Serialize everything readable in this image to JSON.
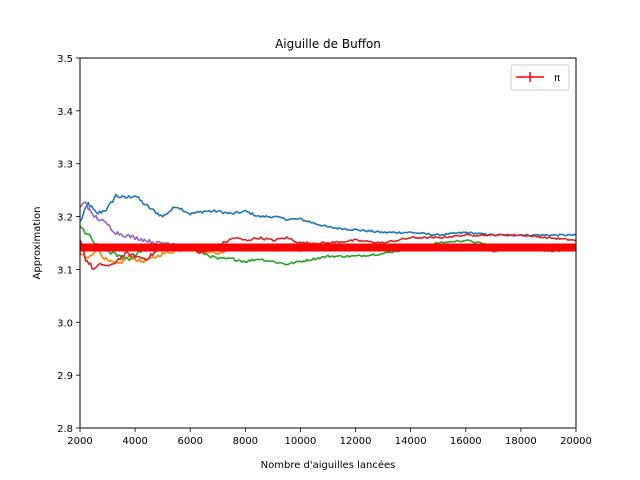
{
  "chart_data": {
    "type": "line",
    "title": "Aiguille de Buffon",
    "xlabel": "Nombre d'aiguilles lancées",
    "ylabel": "Approximation",
    "xlim": [
      2000,
      20000
    ],
    "ylim": [
      2.8,
      3.5
    ],
    "xticks": [
      "2000",
      "4000",
      "6000",
      "8000",
      "10000",
      "12000",
      "14000",
      "16000",
      "18000",
      "20000"
    ],
    "yticks": [
      "2.8",
      "2.9",
      "3.0",
      "3.1",
      "3.2",
      "3.3",
      "3.4",
      "3.5"
    ],
    "grid": false,
    "legend_position": "top-right",
    "reference": {
      "name": "π",
      "value": 3.14159,
      "color": "#ff0000"
    },
    "series": [
      {
        "color": "#1f77b4",
        "x": [
          2000,
          2300,
          2600,
          3000,
          3300,
          3600,
          4000,
          4300,
          4700,
          5000,
          5500,
          6000,
          6500,
          7000,
          7500,
          8000,
          8500,
          9000,
          9500,
          10000,
          11000,
          12000,
          13000,
          14000,
          15000,
          16000,
          17000,
          18000,
          19000,
          20000
        ],
        "y": [
          3.19,
          3.225,
          3.205,
          3.215,
          3.24,
          3.235,
          3.24,
          3.225,
          3.21,
          3.2,
          3.22,
          3.205,
          3.21,
          3.21,
          3.205,
          3.21,
          3.2,
          3.2,
          3.195,
          3.195,
          3.18,
          3.175,
          3.17,
          3.17,
          3.165,
          3.17,
          3.165,
          3.165,
          3.165,
          3.165
        ]
      },
      {
        "color": "#ff7f0e",
        "x": [
          2000,
          2300,
          2600,
          3000,
          3400,
          3800,
          4200,
          4600,
          5000,
          5500,
          6000,
          6500,
          7000,
          7500,
          8000,
          9000,
          10000,
          11000,
          12000,
          13000,
          14000,
          15000,
          16000,
          17000,
          18000,
          19000,
          20000
        ],
        "y": [
          3.13,
          3.12,
          3.14,
          3.115,
          3.11,
          3.125,
          3.115,
          3.12,
          3.13,
          3.135,
          3.14,
          3.135,
          3.13,
          3.14,
          3.14,
          3.14,
          3.135,
          3.14,
          3.14,
          3.14,
          3.14,
          3.145,
          3.145,
          3.14,
          3.14,
          3.14,
          3.14
        ]
      },
      {
        "color": "#2ca02c",
        "x": [
          2000,
          2300,
          2600,
          3000,
          3400,
          3800,
          4200,
          4600,
          5000,
          5500,
          6000,
          6500,
          7000,
          7500,
          8000,
          8500,
          9000,
          9500,
          10000,
          11000,
          12000,
          13000,
          14000,
          15000,
          16000,
          17000,
          18000,
          19000,
          20000
        ],
        "y": [
          3.18,
          3.165,
          3.145,
          3.135,
          3.125,
          3.12,
          3.135,
          3.14,
          3.145,
          3.14,
          3.14,
          3.13,
          3.12,
          3.12,
          3.115,
          3.12,
          3.115,
          3.11,
          3.115,
          3.125,
          3.125,
          3.13,
          3.14,
          3.15,
          3.155,
          3.145,
          3.14,
          3.135,
          3.135
        ]
      },
      {
        "color": "#d62728",
        "x": [
          2000,
          2200,
          2500,
          2800,
          3100,
          3400,
          3700,
          4000,
          4400,
          4800,
          5200,
          5600,
          6000,
          6400,
          6800,
          7200,
          7600,
          8000,
          8500,
          9000,
          9500,
          10000,
          11000,
          12000,
          13000,
          14000,
          15000,
          16000,
          17000,
          18000,
          19000,
          20000
        ],
        "y": [
          3.16,
          3.12,
          3.1,
          3.11,
          3.105,
          3.12,
          3.13,
          3.125,
          3.12,
          3.135,
          3.14,
          3.145,
          3.14,
          3.13,
          3.14,
          3.15,
          3.16,
          3.155,
          3.16,
          3.155,
          3.16,
          3.15,
          3.15,
          3.155,
          3.15,
          3.16,
          3.16,
          3.165,
          3.165,
          3.165,
          3.16,
          3.155
        ]
      },
      {
        "color": "#9467bd",
        "x": [
          2000,
          2200,
          2400,
          2700,
          3000,
          3300,
          3600,
          4000,
          4400,
          4800,
          5200,
          5600,
          6000,
          7000,
          8000,
          9000,
          10000,
          11000,
          12000,
          13000,
          14000,
          15000,
          16000,
          17000,
          18000,
          19000,
          20000
        ],
        "y": [
          3.215,
          3.23,
          3.205,
          3.195,
          3.185,
          3.17,
          3.165,
          3.16,
          3.155,
          3.15,
          3.15,
          3.148,
          3.145,
          3.142,
          3.14,
          3.14,
          3.14,
          3.14,
          3.142,
          3.14,
          3.14,
          3.14,
          3.14,
          3.135,
          3.14,
          3.14,
          3.14
        ]
      }
    ]
  }
}
